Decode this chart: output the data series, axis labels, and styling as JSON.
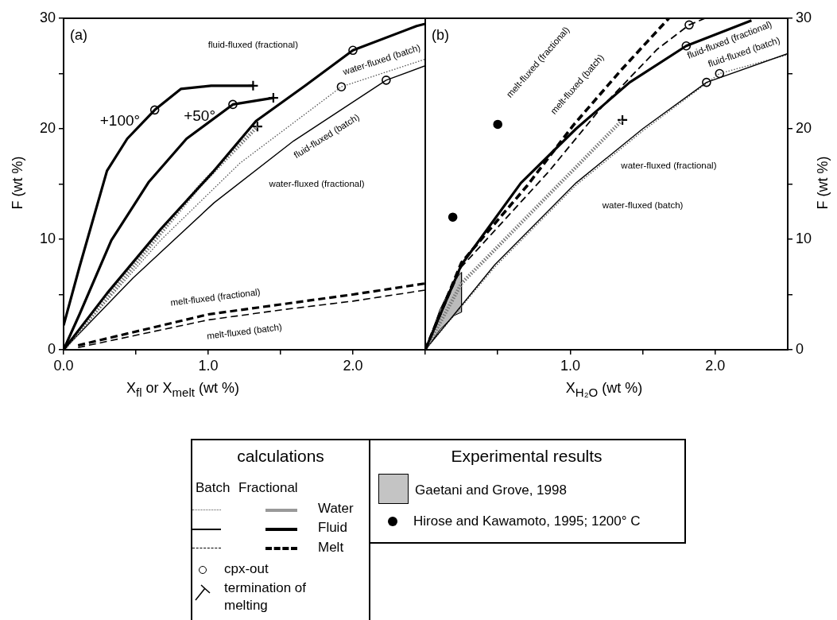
{
  "chart_data": [
    {
      "type": "line",
      "xlabel": "X$_{fl}$ or X$_{melt}$ (wt %)",
      "ylabel": "F (wt %)",
      "xlim": [
        0,
        2.5
      ],
      "ylim": [
        0,
        30
      ],
      "xticks": [
        {
          "value": 0,
          "label": "0.0"
        },
        {
          "value": 0.5,
          "label": null
        },
        {
          "value": 1,
          "label": "1.0"
        },
        {
          "value": 1.5,
          "label": null
        },
        {
          "value": 2,
          "label": "2.0"
        }
      ],
      "yticks": [
        0,
        {
          "value": 5,
          "label": null
        },
        10,
        {
          "value": 15,
          "label": null
        },
        20,
        {
          "value": 25,
          "label": null
        },
        30
      ],
      "annotations": [
        "(a)",
        "+100°",
        "+50°",
        "fluid-fluxed (fractional)",
        "water-fluxed (batch)",
        "fluid-fluxed (batch)",
        "water-fluxed (fractional)",
        "melt-fluxed (fractional)",
        "melt-fluxed (batch)"
      ],
      "series": [
        {
          "type": "line",
          "line_style": "solid",
          "color": "#000000",
          "x": [
            0,
            0.11,
            0.3,
            0.44,
            0.63,
            0.81,
            1.02,
            1.31
          ],
          "values": [
            2.2,
            7.5,
            16.2,
            19.1,
            21.7,
            23.6,
            23.9,
            23.9
          ]
        },
        {
          "type": "line",
          "line_style": "solid",
          "color": "#000000",
          "x": [
            0,
            0.11,
            0.33,
            0.59,
            0.85,
            1.17,
            1.45
          ],
          "values": [
            0,
            3.2,
            9.9,
            15.2,
            19.1,
            22.2,
            22.8
          ]
        },
        {
          "type": "line",
          "line_style": "solid",
          "color": "#000000",
          "x": [
            0,
            0.3,
            0.67,
            1.04,
            1.33,
            1.67,
            2.0,
            2.44,
            2.5
          ],
          "values": [
            0,
            5.1,
            10.9,
            16.2,
            20.7,
            23.9,
            27.1,
            29.3,
            29.5
          ]
        },
        {
          "type": "line",
          "line_style": "dotted",
          "color": "#777777",
          "x": [
            0,
            0.48,
            0.94,
            1.34
          ],
          "values": [
            0,
            7.5,
            14.8,
            20.2
          ]
        },
        {
          "type": "line",
          "line_style": "dotted",
          "color": "#555555",
          "x": [
            0,
            0.67,
            1.22,
            1.92,
            2.5
          ],
          "values": [
            0,
            9.9,
            16.9,
            23.8,
            26.3
          ]
        },
        {
          "type": "line",
          "line_style": "solid",
          "color": "#000000",
          "x": [
            0,
            0.48,
            1.04,
            1.59,
            2.23,
            2.5
          ],
          "values": [
            0,
            6.5,
            13.3,
            18.9,
            24.4,
            25.7
          ]
        },
        {
          "type": "line",
          "line_style": "dashed",
          "color": "#000000",
          "x": [
            0.1,
            1.0,
            1.5,
            2.0,
            2.5
          ],
          "values": [
            0.4,
            3.2,
            4.1,
            5.0,
            6.0
          ]
        },
        {
          "type": "line",
          "line_style": "dashed",
          "color": "#000000",
          "x": [
            0.1,
            1.0,
            1.5,
            2.0,
            2.5
          ],
          "values": [
            0.2,
            2.7,
            3.6,
            4.4,
            5.4
          ]
        },
        {
          "type": "scatter",
          "marker": "circle",
          "color": "#ffffff",
          "x": [
            0.63,
            1.17,
            2.0,
            1.92,
            2.23
          ],
          "values": [
            21.7,
            22.2,
            27.1,
            23.8,
            24.4
          ]
        },
        {
          "type": "scatter",
          "marker": "cross",
          "color": "#000000",
          "x": [
            1.31,
            1.45,
            1.34
          ],
          "values": [
            23.9,
            22.8,
            20.2
          ]
        }
      ]
    },
    {
      "type": "line",
      "xlabel": "X$_{H₂O}$ (wt %)",
      "y2label": "F (wt %)",
      "xlim": [
        0,
        2.5
      ],
      "y2lim": [
        0,
        30
      ],
      "xticks": [
        {
          "value": 0,
          "label": null
        },
        {
          "value": 0.5,
          "label": null
        },
        {
          "value": 1,
          "label": "1.0"
        },
        {
          "value": 1.5,
          "label": null
        },
        {
          "value": 2,
          "label": "2.0"
        }
      ],
      "y2ticks": [
        0,
        {
          "value": 5,
          "label": null
        },
        10,
        {
          "value": 15,
          "label": null
        },
        20,
        {
          "value": 25,
          "label": null
        },
        30
      ],
      "annotations": [
        "(b)",
        "melt-fluxed (fractional)",
        "melt-fluxed (batch)",
        "fluid-fluxed (fractional)",
        "fluid-fluxed (batch)",
        "water-fluxed (fractional)",
        "water-fluxed (batch)"
      ],
      "series": [
        {
          "type": "line",
          "axis": "y2",
          "line_style": "solid",
          "color": "#000000",
          "x": [
            0,
            0.25,
            0.66,
            1.04,
            1.41,
            1.8,
            2.25
          ],
          "values": [
            0,
            7.7,
            15.1,
            20.0,
            24.2,
            27.5,
            29.8
          ]
        },
        {
          "type": "line",
          "axis": "y2",
          "line_style": "dashed",
          "color": "#000000",
          "x": [
            0,
            0.25,
            0.7,
            1.02,
            1.35,
            1.68
          ],
          "values": [
            0,
            7.9,
            14.8,
            20.3,
            25.3,
            30
          ]
        },
        {
          "type": "line",
          "axis": "y2",
          "line_style": "dashed",
          "color": "#000000",
          "x": [
            0,
            0.25,
            0.85,
            1.22,
            1.6,
            1.82,
            1.93
          ],
          "values": [
            0,
            7.5,
            16.1,
            22.0,
            27.2,
            29.4,
            30
          ]
        },
        {
          "type": "line",
          "axis": "y2",
          "line_style": "dotted",
          "color": "#777777",
          "x": [
            0,
            0.25,
            0.85,
            1.36
          ],
          "values": [
            0,
            6.0,
            14.0,
            20.8
          ]
        },
        {
          "type": "line",
          "axis": "y2",
          "line_style": "solid",
          "color": "#000000",
          "x": [
            0,
            0.48,
            1.04,
            1.5,
            1.94,
            2.5
          ],
          "values": [
            0,
            7.7,
            15.1,
            20.0,
            24.2,
            26.8
          ]
        },
        {
          "type": "line",
          "axis": "y2",
          "line_style": "dotted",
          "color": "#555555",
          "x": [
            0,
            0.48,
            1.04,
            1.5,
            2.03,
            2.5
          ],
          "values": [
            0,
            7.5,
            14.9,
            19.8,
            25.0,
            26.7
          ]
        },
        {
          "type": "area",
          "axis": "y2",
          "color": "#bbbbbb",
          "x": [
            0.01,
            0.1,
            0.2,
            0.25,
            0.25,
            0.2,
            0.1,
            0.01
          ],
          "values": [
            0.3,
            3.6,
            6.3,
            7.0,
            3.4,
            3.1,
            1.8,
            0.1
          ]
        },
        {
          "type": "scatter",
          "axis": "y2",
          "marker": "circle",
          "color": "#000000",
          "x": [
            0.19,
            0.5
          ],
          "values": [
            12.0,
            20.4
          ]
        },
        {
          "type": "scatter",
          "axis": "y2",
          "marker": "circle",
          "color": "#ffffff",
          "x": [
            1.8,
            1.94,
            2.03,
            1.82
          ],
          "values": [
            27.5,
            24.2,
            25.0,
            29.4
          ]
        },
        {
          "type": "scatter",
          "axis": "y2",
          "marker": "cross",
          "color": "#000000",
          "x": [
            1.36
          ],
          "values": [
            20.8
          ]
        }
      ]
    },
    {
      "type": "other",
      "annotations": [
        "calculations",
        "Batch",
        "Fractional",
        "Water",
        "Fluid",
        "Melt",
        "cpx-out",
        "termination of melting",
        "Experimental results",
        "Gaetani and Grove, 1998",
        "Hirose and Kawamoto, 1995; 1200° C"
      ]
    }
  ]
}
